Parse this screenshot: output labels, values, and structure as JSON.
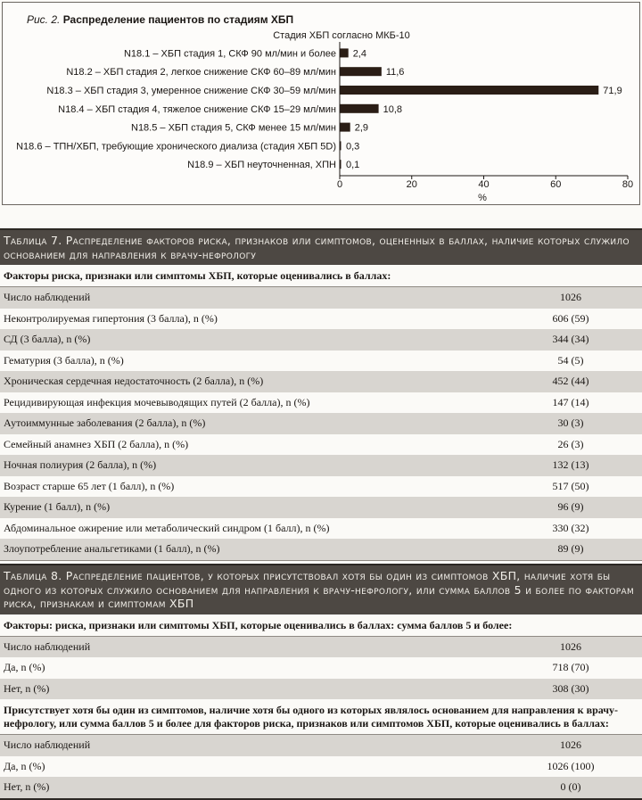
{
  "figure": {
    "caption_prefix": "Рис. 2.",
    "caption": "Распределение пациентов по стадиям ХБП"
  },
  "chart_data": {
    "type": "bar",
    "orientation": "horizontal",
    "title": "Распределение пациентов по стадиям ХБП",
    "category_axis_label": "Стадия ХБП согласно МКБ-10",
    "xlabel": "%",
    "xlim": [
      0,
      80
    ],
    "xticks": [
      "0",
      "20",
      "40",
      "60",
      "80"
    ],
    "grid": false,
    "bar_color": "#2a1d15",
    "categories": [
      "N18.1 – ХБП стадия 1, СКФ 90 мл/мин и более",
      "N18.2 – ХБП стадия 2, легкое снижение СКФ 60–89 мл/мин",
      "N18.3 – ХБП стадия 3, умеренное снижение СКФ 30–59 мл/мин",
      "N18.4 – ХБП стадия 4, тяжелое снижение СКФ 15–29 мл/мин",
      "N18.5 – ХБП стадия 5, СКФ менее 15 мл/мин",
      "N18.6 – ТПН/ХБП, требующие хронического диализа (стадия ХБП 5D)",
      "N18.9 – ХБП неуточненная, ХПН"
    ],
    "values": [
      2.4,
      11.6,
      71.9,
      10.8,
      2.9,
      0.3,
      0.1
    ],
    "data_labels": [
      "2,4",
      "11,6",
      "71,9",
      "10,8",
      "2,9",
      "0,3",
      "0,1"
    ]
  },
  "table7": {
    "title": "Таблица 7. Распределение факторов риска, признаков или симптомов, оцененных в баллах, наличие которых служило основанием для направления к врачу-нефрологу",
    "subheader": "Факторы риска, признаки или симптомы ХБП, которые оценивались в баллах:",
    "rows": [
      {
        "label": "Число наблюдений",
        "value": "1026"
      },
      {
        "label": "Неконтролируемая гипертония (3 балла), n (%)",
        "value": "606 (59)"
      },
      {
        "label": "СД (3 балла), n (%)",
        "value": "344 (34)"
      },
      {
        "label": "Гематурия (3 балла), n (%)",
        "value": "54 (5)"
      },
      {
        "label": "Хроническая сердечная недостаточность (2 балла), n (%)",
        "value": "452 (44)"
      },
      {
        "label": "Рецидивирующая инфекция мочевыводящих путей (2 балла), n (%)",
        "value": "147 (14)"
      },
      {
        "label": "Аутоиммунные заболевания (2 балла), n (%)",
        "value": "30 (3)"
      },
      {
        "label": "Семейный анамнез ХБП (2 балла), n (%)",
        "value": "26 (3)"
      },
      {
        "label": "Ночная полиурия (2 балла), n (%)",
        "value": "132 (13)"
      },
      {
        "label": "Возраст старше 65 лет (1 балл), n (%)",
        "value": "517 (50)"
      },
      {
        "label": "Курение (1 балл), n (%)",
        "value": "96 (9)"
      },
      {
        "label": "Абдоминальное ожирение или метаболический синдром (1 балл), n (%)",
        "value": "330 (32)"
      },
      {
        "label": "Злоупотребление анальгетиками (1 балл), n (%)",
        "value": "89 (9)"
      }
    ]
  },
  "table8": {
    "title": "Таблица 8. Распределение пациентов, у которых присутствовал хотя бы один из симптомов ХБП, наличие хотя бы одного из которых служило основанием для направления к врачу-нефрологу, или сумма баллов 5 и более по факторам риска, признакам и симптомам ХБП",
    "sections": [
      {
        "subheader": "Факторы: риска, признаки или симптомы ХБП, которые оценивались в баллах: сумма баллов 5 и более:",
        "rows": [
          {
            "label": "Число наблюдений",
            "value": "1026"
          },
          {
            "label": "Да, n (%)",
            "value": "718 (70)"
          },
          {
            "label": "Нет, n (%)",
            "value": "308 (30)"
          }
        ]
      },
      {
        "subheader": "Присутствует хотя бы один из симптомов, наличие хотя бы одного из которых являлось основанием для направления к врачу-нефрологу, или сумма баллов 5 и более для факторов риска, признаков или симптомов ХБП, которые оценивались в баллах:",
        "rows": [
          {
            "label": "Число наблюдений",
            "value": "1026"
          },
          {
            "label": "Да, n (%)",
            "value": "1026 (100)"
          },
          {
            "label": "Нет, n (%)",
            "value": "0 (0)"
          }
        ]
      }
    ]
  }
}
